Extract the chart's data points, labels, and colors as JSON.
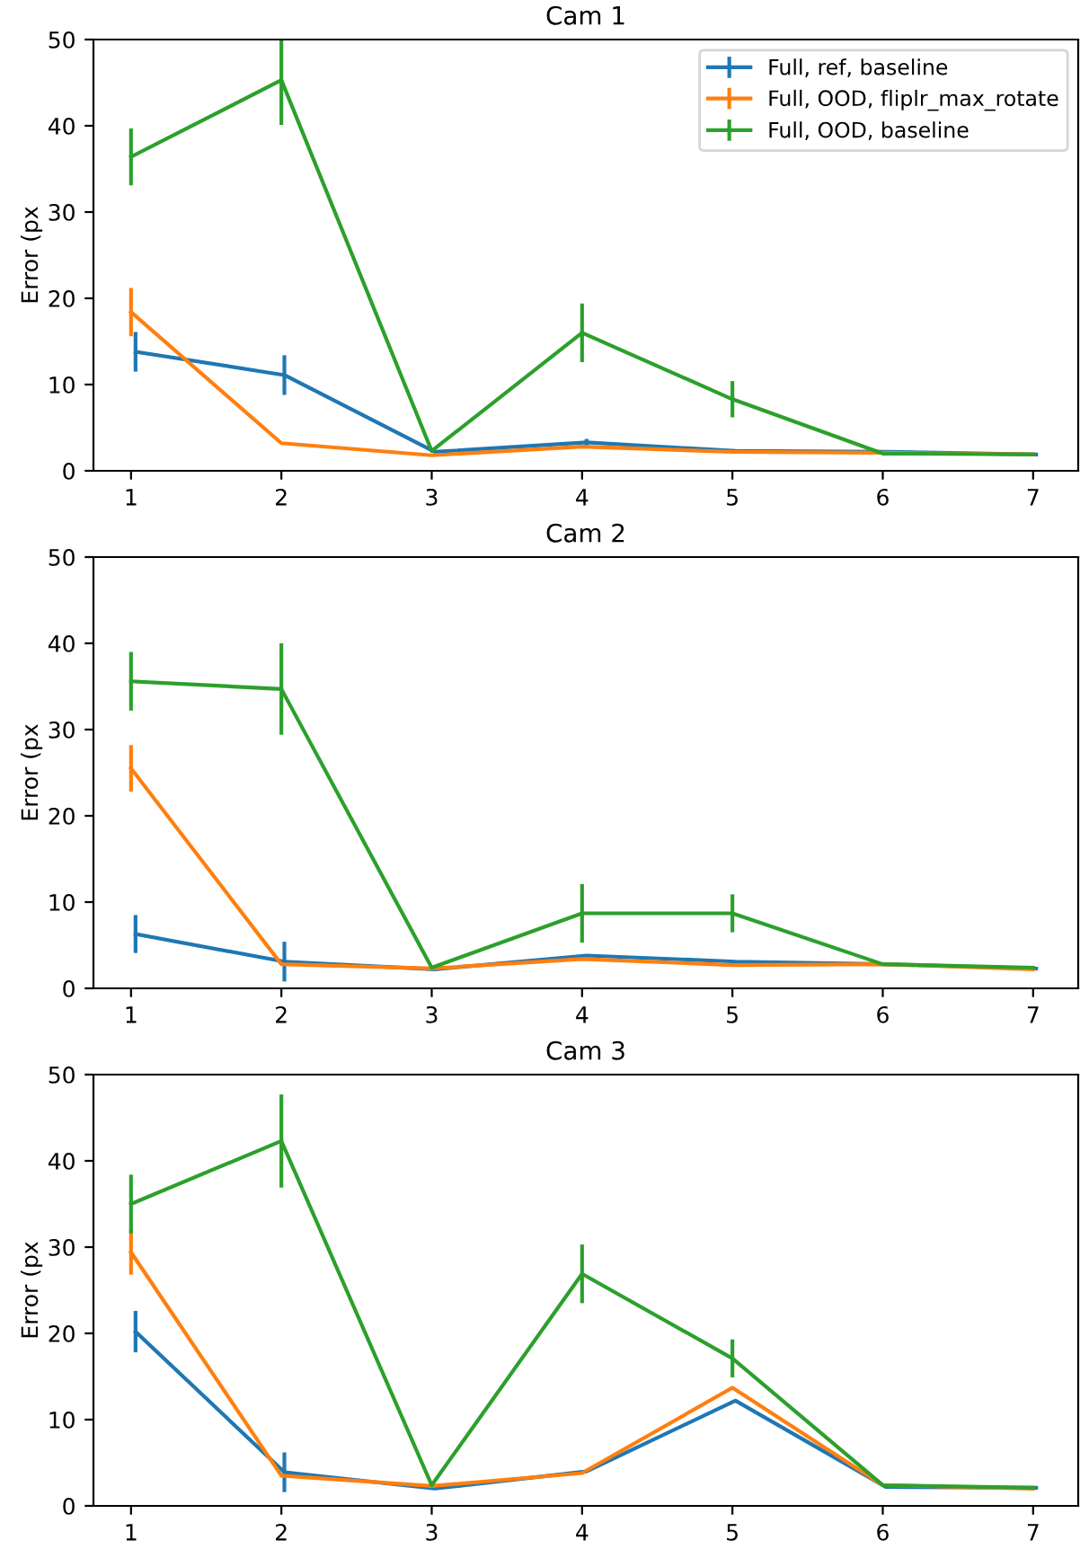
{
  "chart_data": [
    {
      "type": "line",
      "title": "Cam 1",
      "ylabel": "Error (px",
      "xlim": [
        0.75,
        7.3
      ],
      "xticks": [
        1,
        2,
        3,
        4,
        5,
        6,
        7
      ],
      "ylim": [
        0,
        50
      ],
      "yticks": [
        0,
        10,
        20,
        30,
        40,
        50
      ],
      "legend": "top right",
      "grid": false,
      "series": [
        {
          "name": "Full, ref, baseline",
          "color": "#1f77b4",
          "x": [
            1.03,
            2.02,
            3.02,
            4.03,
            5.02,
            6.02,
            7.02
          ],
          "values": [
            13.8,
            11.1,
            2.2,
            3.3,
            2.3,
            2.2,
            1.9
          ],
          "errors": [
            2.3,
            2.3,
            null,
            0.4,
            null,
            null,
            null
          ]
        },
        {
          "name": "Full, OOD, fliplr_max_rotate",
          "color": "#ff7f0e",
          "x": [
            1,
            2,
            3,
            4,
            5,
            6,
            7
          ],
          "values": [
            18.4,
            3.2,
            1.8,
            2.8,
            2.2,
            2.1,
            1.9
          ],
          "errors": [
            2.8,
            null,
            null,
            null,
            null,
            null,
            null
          ]
        },
        {
          "name": "Full, OOD, baseline",
          "color": "#2ca02c",
          "x": [
            1,
            2,
            3,
            4,
            5,
            6,
            7
          ],
          "values": [
            36.4,
            45.3,
            2.3,
            16,
            8.3,
            2.0,
            1.9
          ],
          "errors": [
            3.3,
            [
              40.1,
              50
            ],
            null,
            3.4,
            2.1,
            null,
            null
          ]
        }
      ]
    },
    {
      "type": "line",
      "title": "Cam 2",
      "ylabel": "Error (px",
      "xlim": [
        0.75,
        7.3
      ],
      "xticks": [
        1,
        2,
        3,
        4,
        5,
        6,
        7
      ],
      "ylim": [
        0,
        50
      ],
      "yticks": [
        0,
        10,
        20,
        30,
        40,
        50
      ],
      "grid": false,
      "series": [
        {
          "color": "#1f77b4",
          "x": [
            1.03,
            2.02,
            3.02,
            4.03,
            5.02,
            6.02,
            7.02
          ],
          "values": [
            6.3,
            3.1,
            2.2,
            3.8,
            3.1,
            2.8,
            2.3
          ],
          "errors": [
            2.2,
            2.3,
            null,
            null,
            null,
            null,
            null
          ]
        },
        {
          "color": "#ff7f0e",
          "x": [
            1,
            2,
            3,
            4,
            5,
            6,
            7
          ],
          "values": [
            25.5,
            2.8,
            2.3,
            3.4,
            2.7,
            2.8,
            2.2
          ],
          "errors": [
            2.7,
            null,
            null,
            null,
            null,
            null,
            null
          ]
        },
        {
          "color": "#2ca02c",
          "x": [
            1,
            2,
            3,
            4,
            5,
            6,
            7
          ],
          "values": [
            35.6,
            34.7,
            2.4,
            8.7,
            8.7,
            2.8,
            2.4
          ],
          "errors": [
            3.4,
            5.3,
            null,
            3.4,
            2.2,
            null,
            null
          ]
        }
      ]
    },
    {
      "type": "line",
      "title": "Cam 3",
      "ylabel": "Error (px",
      "xlim": [
        0.75,
        7.3
      ],
      "xticks": [
        1,
        2,
        3,
        4,
        5,
        6,
        7
      ],
      "ylim": [
        0,
        50
      ],
      "yticks": [
        0,
        10,
        20,
        30,
        40,
        50
      ],
      "grid": false,
      "series": [
        {
          "color": "#1f77b4",
          "x": [
            1.03,
            2.02,
            3.02,
            4.03,
            5.02,
            6.02,
            7.02
          ],
          "values": [
            20.2,
            3.9,
            2.0,
            4.0,
            12.2,
            2.2,
            2.1
          ],
          "errors": [
            2.4,
            2.3,
            null,
            null,
            null,
            null,
            null
          ]
        },
        {
          "color": "#ff7f0e",
          "x": [
            1,
            2,
            3,
            4,
            5,
            6,
            7
          ],
          "values": [
            29.4,
            3.5,
            2.3,
            3.8,
            13.7,
            2.4,
            2.0
          ],
          "errors": [
            2.6,
            null,
            null,
            null,
            null,
            null,
            null
          ]
        },
        {
          "color": "#2ca02c",
          "x": [
            1,
            2,
            3,
            4,
            5,
            6,
            7
          ],
          "values": [
            35,
            42.3,
            2.4,
            26.9,
            17.1,
            2.4,
            2.1
          ],
          "errors": [
            3.4,
            5.4,
            null,
            3.4,
            2.2,
            null,
            null
          ]
        }
      ]
    }
  ]
}
